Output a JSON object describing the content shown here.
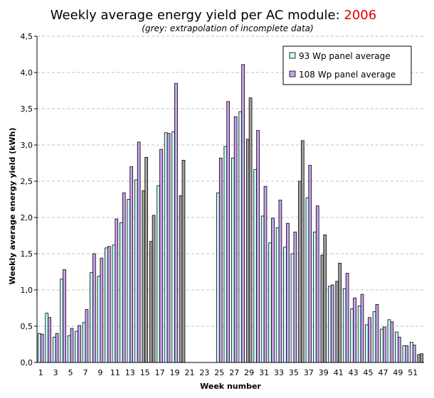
{
  "chart_data": {
    "type": "bar",
    "title_main": "Weekly average energy yield per AC module: ",
    "title_year": "2006",
    "subtitle": "(grey: extrapolation of incomplete data)",
    "xlabel": "Week number",
    "ylabel": "Weekly average energy yield (kWh)",
    "ylim": [
      0,
      4.5
    ],
    "yticks": [
      "0,0",
      "0,5",
      "1,0",
      "1,5",
      "2,0",
      "2,5",
      "3,0",
      "3,5",
      "4,0",
      "4,5"
    ],
    "xtick_labels": [
      "1",
      "3",
      "5",
      "7",
      "9",
      "11",
      "13",
      "15",
      "17",
      "19",
      "21",
      "23",
      "25",
      "27",
      "29",
      "31",
      "33",
      "35",
      "37",
      "39",
      "41",
      "43",
      "45",
      "47",
      "49",
      "51"
    ],
    "grid": true,
    "legend_position": "top-right",
    "colors": {
      "series_93": "#c8fafa",
      "series_108": "#c8a0f0",
      "extrapolated": "#a0a0a0",
      "title_year": "#e00000"
    },
    "series": [
      {
        "name": "93 Wp panel average",
        "values": [
          0.4,
          0.68,
          0.35,
          1.15,
          0.37,
          0.43,
          0.55,
          1.24,
          1.19,
          1.58,
          1.62,
          1.93,
          2.25,
          2.52,
          2.37,
          1.67,
          2.44,
          3.17,
          3.18,
          2.3,
          0,
          0,
          0,
          0,
          2.34,
          2.98,
          2.82,
          3.46,
          3.08,
          2.66,
          2.02,
          1.65,
          1.86,
          1.59,
          1.5,
          2.5,
          2.27,
          1.8,
          1.48,
          1.05,
          1.12,
          1.02,
          0.74,
          0.78,
          0.52,
          0.7,
          0.46,
          0.59,
          0.42,
          0.23,
          0.28,
          0.11
        ],
        "extrapolated": [
          false,
          false,
          false,
          false,
          false,
          false,
          false,
          false,
          false,
          false,
          false,
          false,
          false,
          false,
          true,
          true,
          false,
          false,
          false,
          true,
          false,
          false,
          false,
          false,
          false,
          false,
          false,
          false,
          true,
          false,
          false,
          false,
          false,
          false,
          false,
          true,
          false,
          false,
          true,
          false,
          true,
          false,
          false,
          false,
          false,
          false,
          false,
          false,
          false,
          false,
          false,
          true
        ]
      },
      {
        "name": "108 Wp panel average",
        "values": [
          0.39,
          0.62,
          0.4,
          1.28,
          0.47,
          0.51,
          0.73,
          1.5,
          1.44,
          1.6,
          1.98,
          2.34,
          2.7,
          3.04,
          2.83,
          2.03,
          2.94,
          3.16,
          3.85,
          2.79,
          0,
          0,
          0,
          0,
          2.82,
          3.6,
          3.39,
          4.11,
          3.65,
          3.2,
          2.43,
          1.99,
          2.24,
          1.92,
          1.8,
          3.06,
          2.72,
          2.16,
          1.76,
          1.07,
          1.37,
          1.23,
          0.89,
          0.94,
          0.62,
          0.8,
          0.49,
          0.56,
          0.35,
          0.23,
          0.24,
          0.12
        ],
        "extrapolated": [
          false,
          false,
          false,
          false,
          false,
          false,
          false,
          false,
          false,
          false,
          false,
          false,
          false,
          false,
          true,
          true,
          false,
          false,
          false,
          true,
          false,
          false,
          false,
          false,
          false,
          false,
          false,
          false,
          true,
          false,
          false,
          false,
          false,
          false,
          false,
          true,
          false,
          false,
          true,
          false,
          true,
          false,
          false,
          false,
          false,
          false,
          false,
          false,
          false,
          false,
          false,
          true
        ]
      }
    ]
  }
}
